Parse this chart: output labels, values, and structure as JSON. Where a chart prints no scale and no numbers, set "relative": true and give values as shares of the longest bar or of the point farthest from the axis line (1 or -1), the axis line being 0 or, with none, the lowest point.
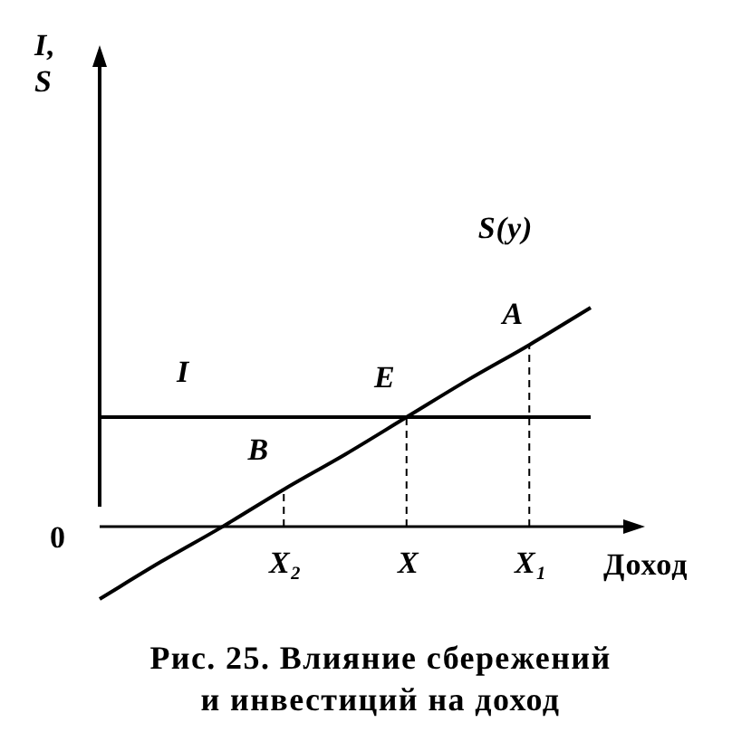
{
  "chart_data": {
    "type": "line",
    "title": "Рис. 25. Влияние сбережений и инвестиций на доход",
    "xlabel": "Доход",
    "relative": true,
    "categories": [
      null,
      null,
      null,
      "X₂",
      null,
      "X",
      null,
      "X₁",
      null
    ],
    "series": [
      {
        "name": "I",
        "color": "#000000",
        "values": [
          0.5,
          0.5,
          0.5,
          0.5,
          0.5,
          0.5,
          0.5,
          0.5,
          0.5
        ]
      },
      {
        "name": "S(y)",
        "color": "#000000",
        "values": [
          -0.33,
          -0.16,
          0,
          0.17,
          0.33,
          0.5,
          0.67,
          0.83,
          1
        ]
      }
    ],
    "ref_lines": [
      {
        "axis": "x",
        "value": "X₂",
        "color": "#000000",
        "line_style": "dashed"
      },
      {
        "axis": "x",
        "value": "X",
        "color": "#000000",
        "line_style": "dashed"
      },
      {
        "axis": "x",
        "value": "X₁",
        "color": "#000000",
        "line_style": "dashed"
      }
    ],
    "annotations": [
      "I, S",
      "0",
      {
        "text": "A",
        "x": "X₁",
        "y": 0.83
      },
      {
        "text": "E",
        "x": "X",
        "y": 0.5
      },
      {
        "text": "B",
        "x": "X₂",
        "y": 0.17
      }
    ],
    "marker": "none",
    "line_style": "solid"
  }
}
